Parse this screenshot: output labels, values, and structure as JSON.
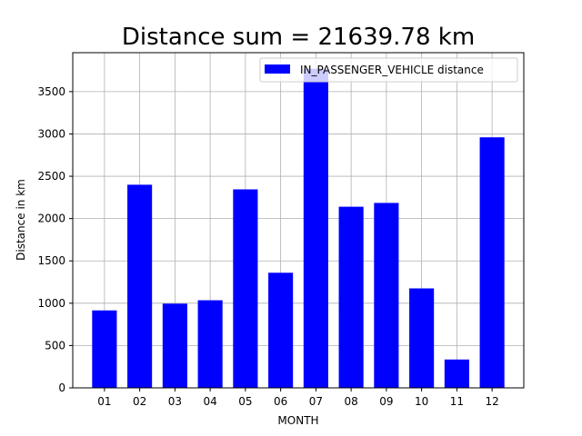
{
  "chart_data": {
    "type": "bar",
    "title": "Distance sum = 21639.78 km",
    "xlabel": "MONTH",
    "ylabel": "Distance in km",
    "categories": [
      "01",
      "02",
      "03",
      "04",
      "05",
      "06",
      "07",
      "08",
      "09",
      "10",
      "11",
      "12"
    ],
    "series": [
      {
        "name": "IN_PASSENGER_VEHICLE distance",
        "color": "#0000ff",
        "values": [
          915,
          2400,
          995,
          1035,
          2345,
          1360,
          3770,
          2140,
          2185,
          1175,
          335,
          2960
        ]
      }
    ],
    "ylim": [
      0,
      3960
    ],
    "yticks": [
      0,
      500,
      1000,
      1500,
      2000,
      2500,
      3000,
      3500
    ],
    "grid": true,
    "legend_position": "top-right"
  }
}
